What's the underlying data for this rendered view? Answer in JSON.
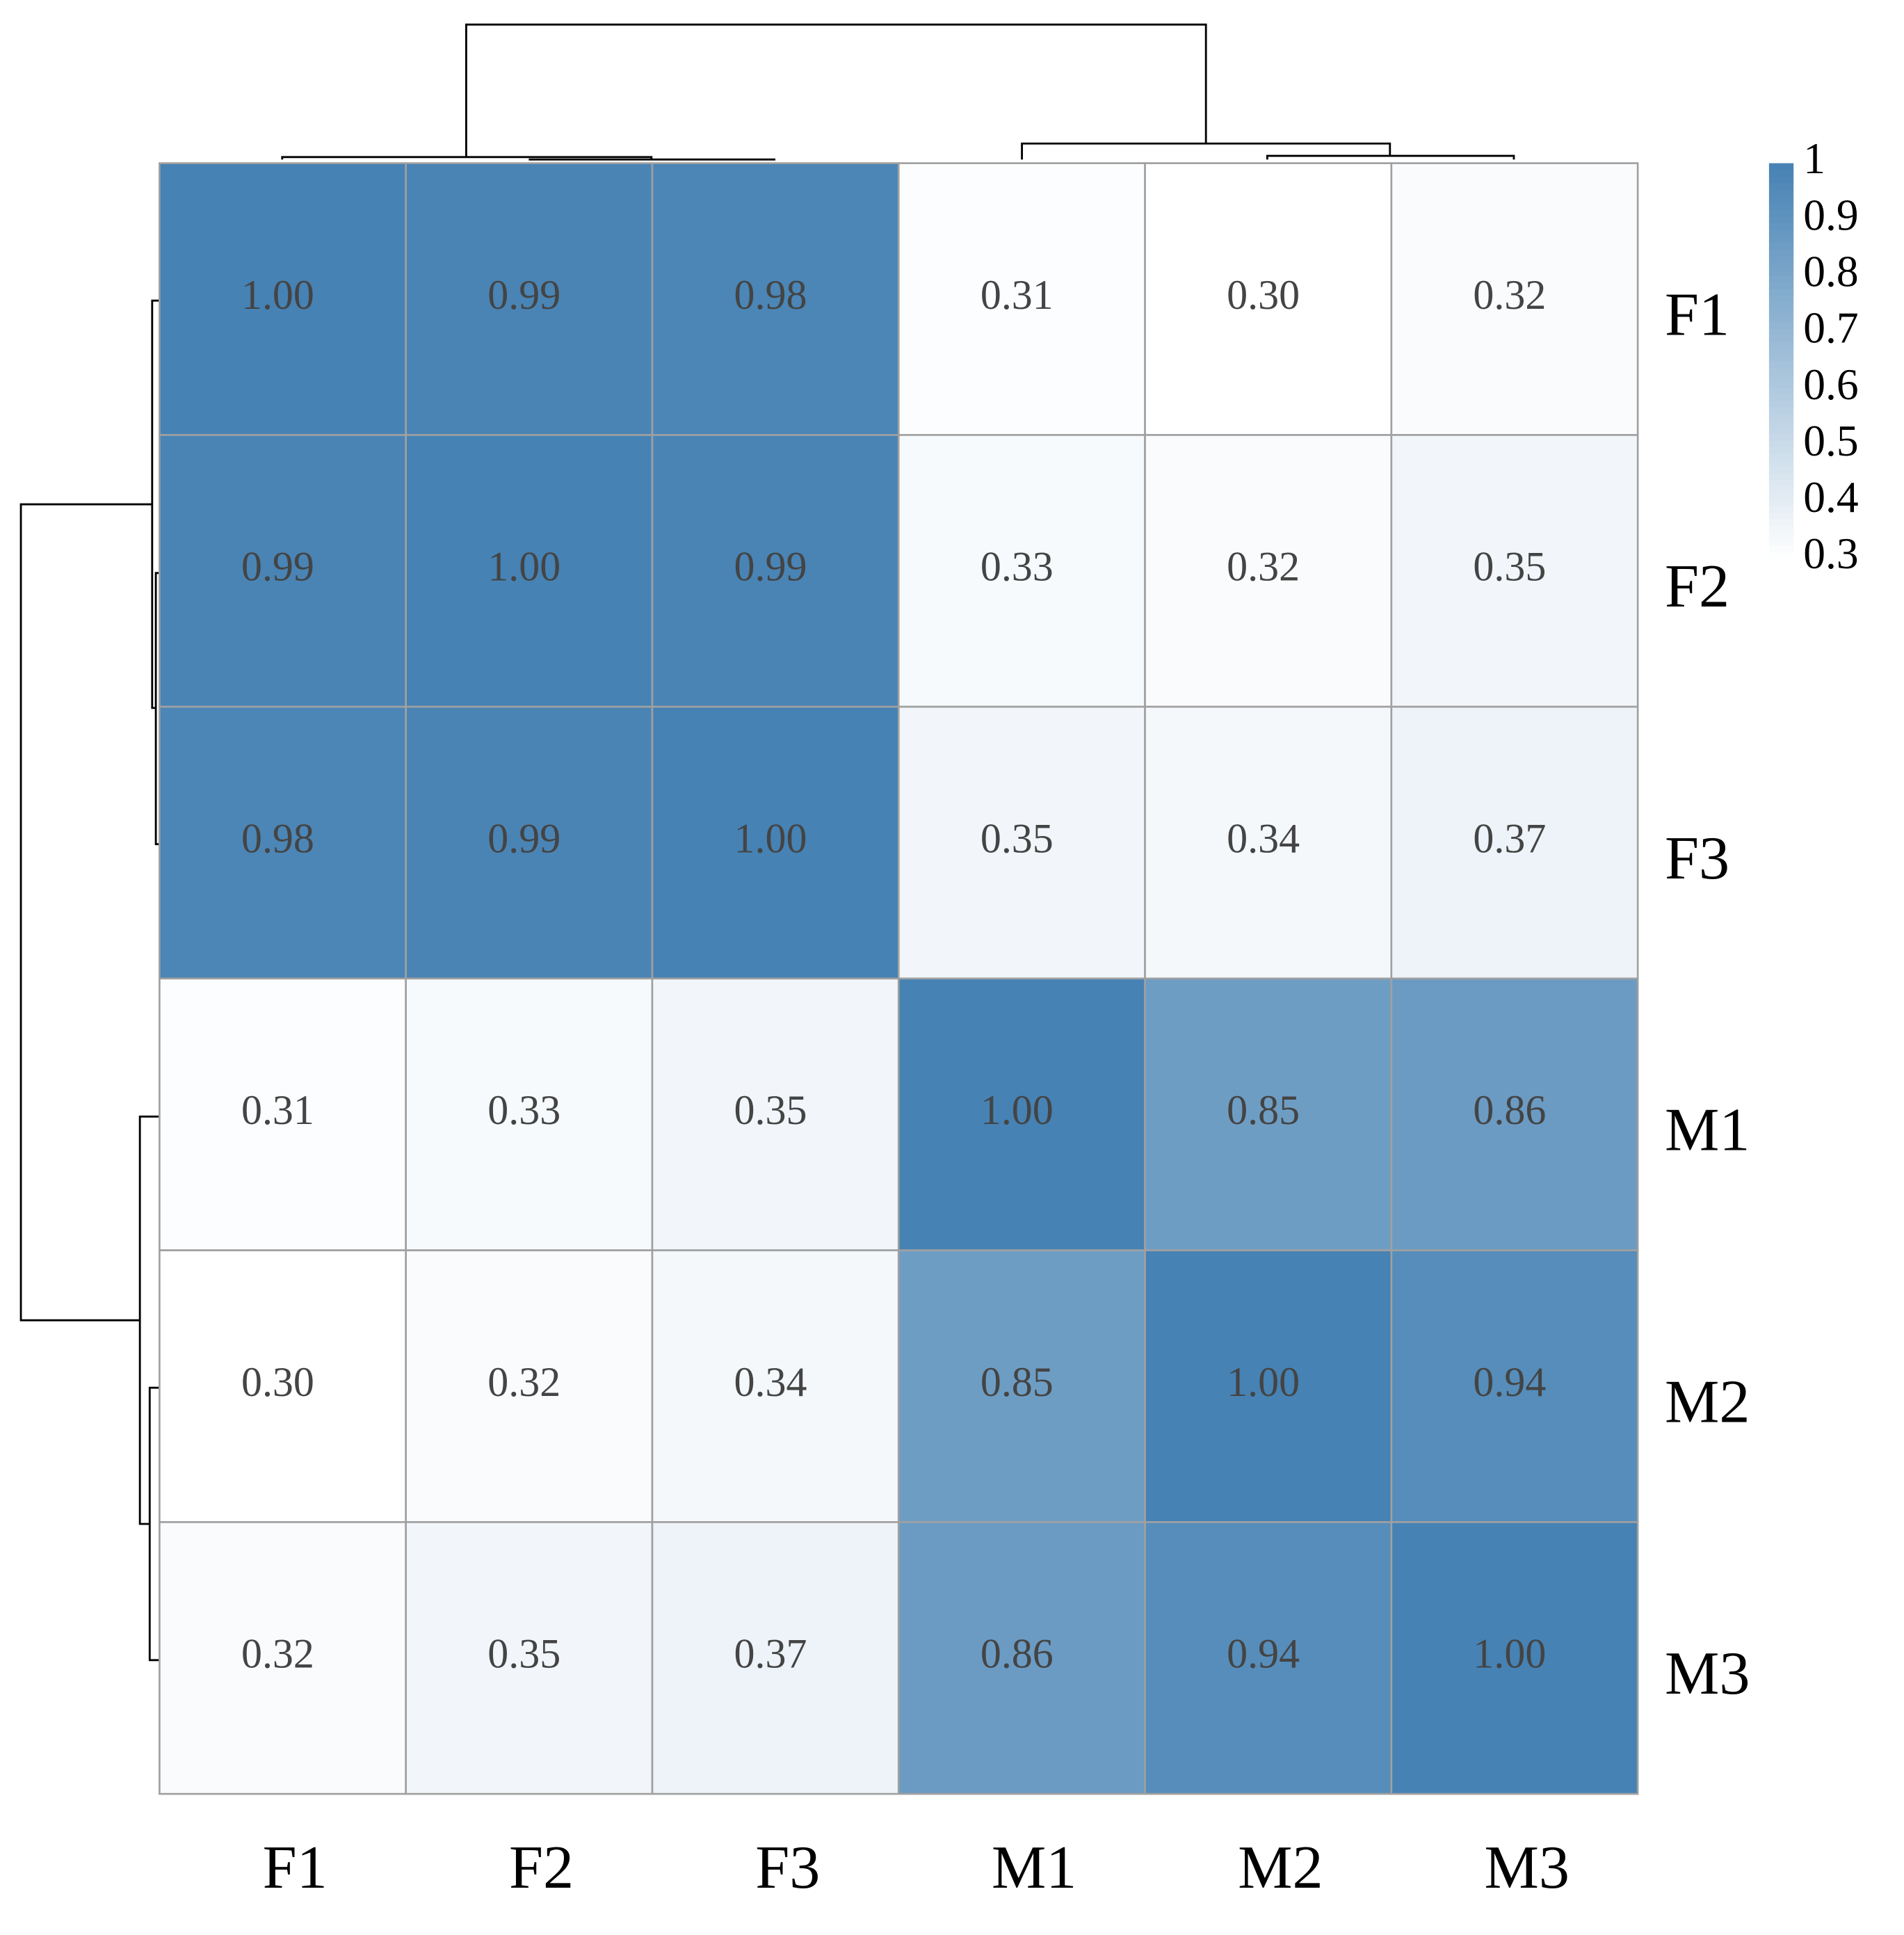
{
  "chart_data": {
    "type": "heatmap",
    "rows": [
      "F1",
      "F2",
      "F3",
      "M1",
      "M2",
      "M3"
    ],
    "columns": [
      "F1",
      "F2",
      "F3",
      "M1",
      "M2",
      "M3"
    ],
    "values": [
      [
        1.0,
        0.99,
        0.98,
        0.31,
        0.3,
        0.32
      ],
      [
        0.99,
        1.0,
        0.99,
        0.33,
        0.32,
        0.35
      ],
      [
        0.98,
        0.99,
        1.0,
        0.35,
        0.34,
        0.37
      ],
      [
        0.31,
        0.33,
        0.35,
        1.0,
        0.85,
        0.86
      ],
      [
        0.3,
        0.32,
        0.34,
        0.85,
        1.0,
        0.94
      ],
      [
        0.32,
        0.35,
        0.37,
        0.86,
        0.94,
        1.0
      ]
    ],
    "value_labels": [
      [
        "1.00",
        "0.99",
        "0.98",
        "0.31",
        "0.30",
        "0.32"
      ],
      [
        "0.99",
        "1.00",
        "0.99",
        "0.33",
        "0.32",
        "0.35"
      ],
      [
        "0.98",
        "0.99",
        "1.00",
        "0.35",
        "0.34",
        "0.37"
      ],
      [
        "0.31",
        "0.33",
        "0.35",
        "1.00",
        "0.85",
        "0.86"
      ],
      [
        "0.30",
        "0.32",
        "0.34",
        "0.85",
        "1.00",
        "0.94"
      ],
      [
        "0.32",
        "0.35",
        "0.37",
        "0.86",
        "0.94",
        "1.00"
      ]
    ],
    "zlim": [
      0.3,
      1
    ],
    "zticks": [
      0.3,
      0.4,
      0.5,
      0.6,
      0.7,
      0.8,
      0.9,
      1
    ],
    "colormap": [
      "#ffffff",
      "#4682b4"
    ]
  }
}
